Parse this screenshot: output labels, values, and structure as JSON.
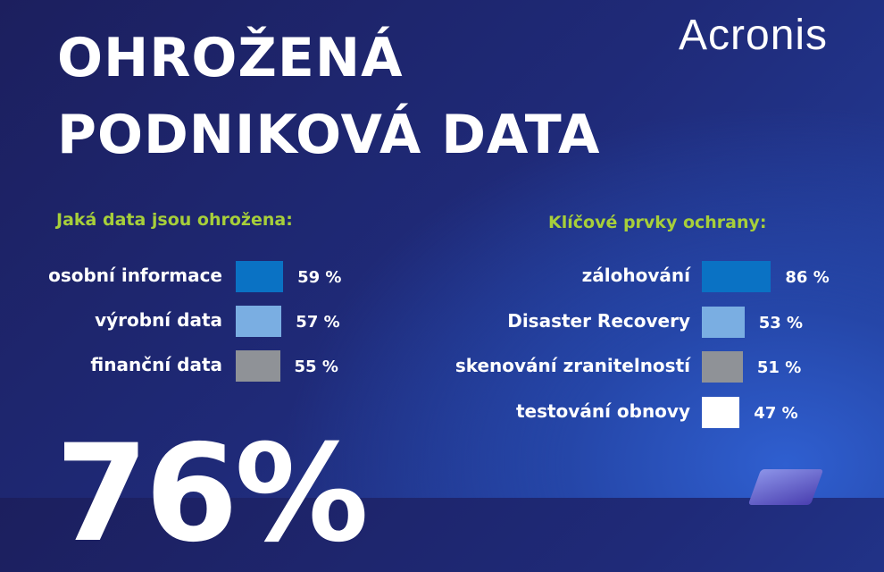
{
  "title_line1": "OHROŽENÁ",
  "title_line2": "PODNIKOVÁ DATA",
  "logo": "Acronis",
  "big_stat": "76%",
  "chart_data": [
    {
      "type": "bar",
      "title": "Jaká data jsou ohrožena:",
      "categories": [
        "osobní informace",
        "výrobní data",
        "finanční data"
      ],
      "values": [
        59,
        57,
        55
      ],
      "value_labels": [
        "59 %",
        "57 %",
        "55 %"
      ],
      "colors": [
        "#0a72c4",
        "#7aaee2",
        "#8f9297"
      ]
    },
    {
      "type": "bar",
      "title": "Klíčové prvky ochrany:",
      "categories": [
        "zálohování",
        "Disaster Recovery",
        "skenování zranitelností",
        "testování obnovy"
      ],
      "values": [
        86,
        53,
        51,
        47
      ],
      "value_labels": [
        "86 %",
        "53 %",
        "51 %",
        "47 %"
      ],
      "colors": [
        "#0a72c4",
        "#7aaee2",
        "#8f9297",
        "#ffffff"
      ]
    }
  ]
}
